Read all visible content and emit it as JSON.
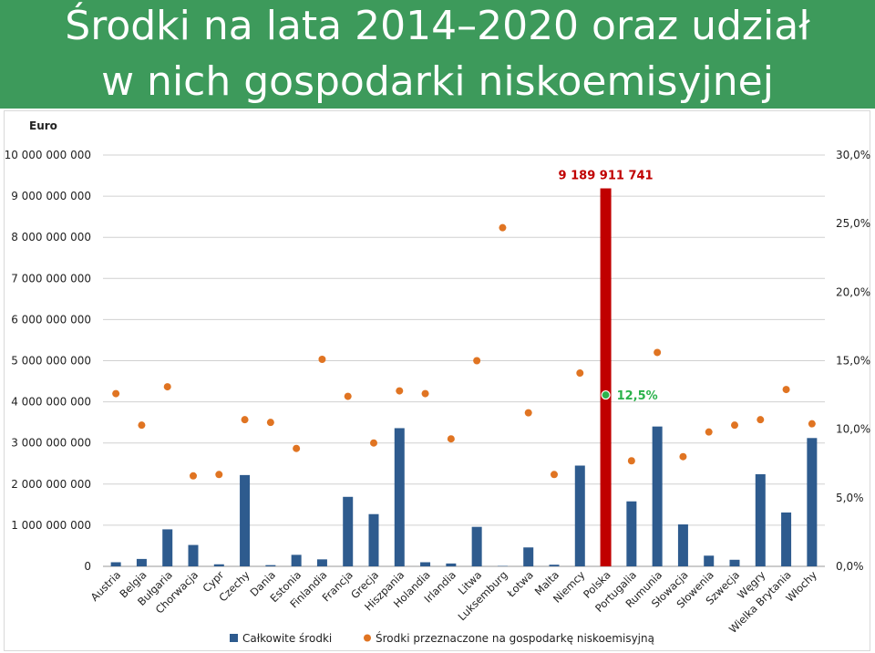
{
  "title": {
    "line1": "Środki na lata 2014–2020 oraz udział",
    "line2": "w nich gospodarki niskoemisyjnej"
  },
  "colors": {
    "title_band": "#3d9a5b",
    "bar": "#2e5b8e",
    "highlight_bar": "#c00000",
    "dot": "#e07422",
    "highlight_dot": "#2bb24c",
    "highlight_pct_text": "#2bb24c",
    "highlight_value_text": "#c00000",
    "grid": "#d0d0d0"
  },
  "chart_data": {
    "type": "bar",
    "ylabel": "Euro",
    "ylim": [
      0,
      10000000000
    ],
    "y2lim": [
      0,
      30
    ],
    "grid": true,
    "legend_position": "bottom",
    "left_tick_labels": [
      "0",
      "1 000 000 000",
      "2 000 000 000",
      "3 000 000 000",
      "4 000 000 000",
      "5 000 000 000",
      "6 000 000 000",
      "7 000 000 000",
      "8 000 000 000",
      "9 000 000 000",
      "10 000 000 000"
    ],
    "right_tick_labels": [
      "0,0%",
      "5,0%",
      "10,0%",
      "15,0%",
      "20,0%",
      "25,0%",
      "30,0%"
    ],
    "categories": [
      "Austria",
      "Belgia",
      "Bułgaria",
      "Chorwacja",
      "Cypr",
      "Czechy",
      "Dania",
      "Estonia",
      "Finlandia",
      "Francja",
      "Grecja",
      "Hiszpania",
      "Holandia",
      "Irlandia",
      "Litwa",
      "Luksemburg",
      "Łotwa",
      "Malta",
      "Niemcy",
      "Polska",
      "Portugalia",
      "Rumunia",
      "Słowacja",
      "Słowenia",
      "Szwecja",
      "Węgry",
      "Wielka Brytania",
      "Włochy"
    ],
    "series": [
      {
        "name": "Całkowite środki",
        "type": "bar",
        "axis": "left",
        "values": [
          100000000,
          180000000,
          900000000,
          520000000,
          50000000,
          2220000000,
          30000000,
          280000000,
          170000000,
          1690000000,
          1270000000,
          3360000000,
          100000000,
          70000000,
          960000000,
          10000000,
          460000000,
          40000000,
          2450000000,
          9189911741,
          1580000000,
          3400000000,
          1020000000,
          260000000,
          160000000,
          2240000000,
          1310000000,
          3120000000
        ]
      },
      {
        "name": "Środki przeznaczone na gospodarkę niskoemisyjną",
        "type": "scatter",
        "axis": "right",
        "values": [
          12.6,
          10.3,
          13.1,
          6.6,
          6.7,
          10.7,
          10.5,
          8.6,
          15.1,
          12.4,
          9.0,
          12.8,
          12.6,
          9.3,
          15.0,
          24.7,
          11.2,
          6.7,
          14.1,
          12.5,
          7.7,
          15.6,
          8.0,
          9.8,
          10.3,
          10.7,
          12.9,
          10.4
        ]
      }
    ],
    "annotations": {
      "highlight_category": "Polska",
      "highlight_value_label": "9 189 911 741",
      "highlight_pct_label": "12,5%"
    }
  }
}
